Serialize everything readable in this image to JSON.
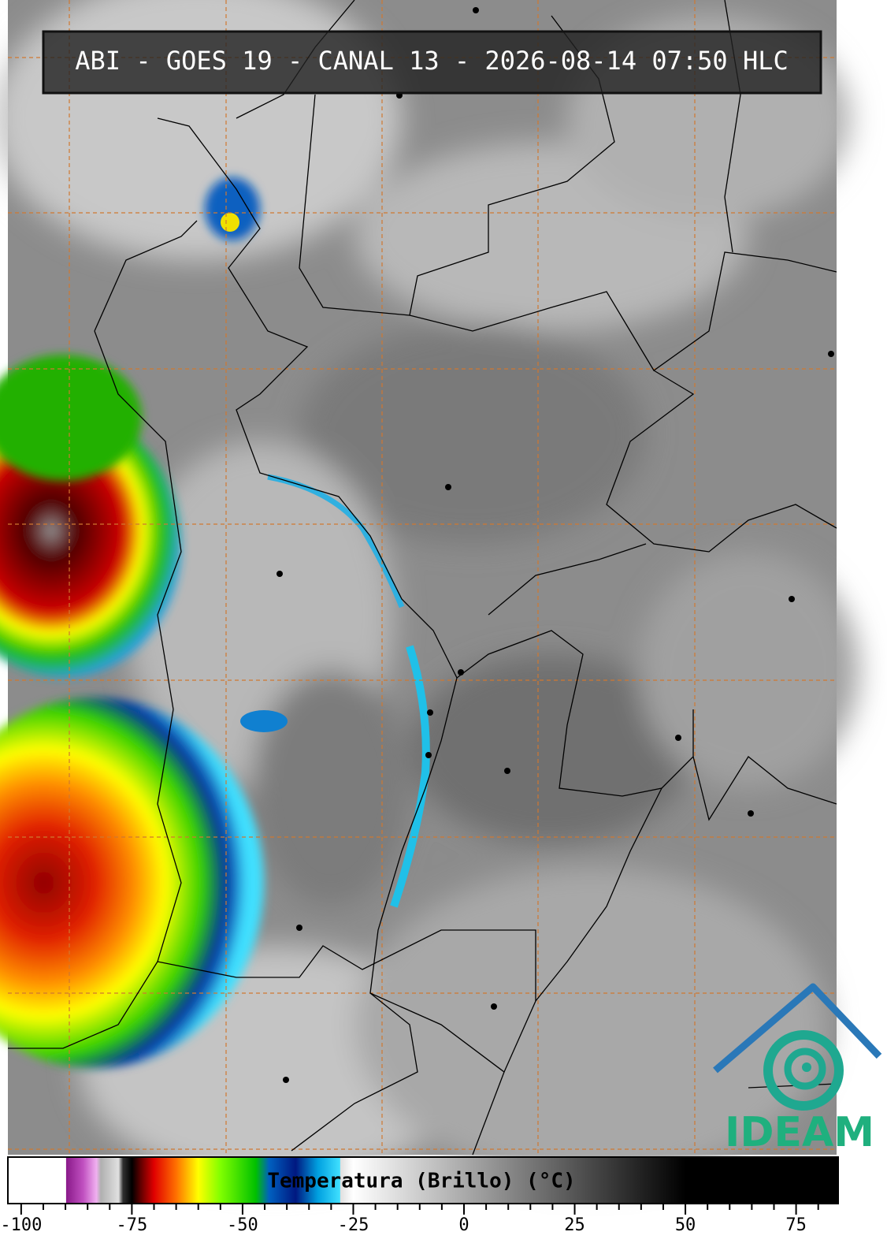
{
  "title": "ABI - GOES 19 - CANAL 13 - 2026-08-14 07:50 HLC",
  "logo": "IDEAM",
  "colorbar": {
    "label": "Temperatura (Brillo) (°C)",
    "lim": [
      -103,
      84.5
    ],
    "ticks": [
      -100,
      -75,
      -50,
      -25,
      0,
      25,
      50,
      75
    ],
    "minor_ticks": [
      -95,
      -90,
      -85,
      -80,
      -70,
      -65,
      -60,
      -55,
      -45,
      -40,
      -35,
      -30,
      -20,
      -15,
      -10,
      -5,
      5,
      10,
      15,
      20,
      30,
      35,
      40,
      45,
      55,
      60,
      65,
      70,
      80
    ],
    "color_stops": [
      {
        "value": -103,
        "color": "#ffffff"
      },
      {
        "value": -89.9,
        "color": "#ffffff"
      },
      {
        "value": -89.8,
        "color": "#8a1a8a"
      },
      {
        "value": -86,
        "color": "#c050c0"
      },
      {
        "value": -83,
        "color": "#f0b0f0"
      },
      {
        "value": -82,
        "color": "#b0b0b0"
      },
      {
        "value": -78,
        "color": "#e0e0e0"
      },
      {
        "value": -77,
        "color": "#303030"
      },
      {
        "value": -75,
        "color": "#000000"
      },
      {
        "value": -73,
        "color": "#600000"
      },
      {
        "value": -70,
        "color": "#e00000"
      },
      {
        "value": -65,
        "color": "#ff7000"
      },
      {
        "value": -60,
        "color": "#ffff00"
      },
      {
        "value": -55,
        "color": "#80ff00"
      },
      {
        "value": -47,
        "color": "#00c000"
      },
      {
        "value": -44,
        "color": "#0060c0"
      },
      {
        "value": -38,
        "color": "#001880"
      },
      {
        "value": -33,
        "color": "#00a0e0"
      },
      {
        "value": -28,
        "color": "#40e0ff"
      },
      {
        "value": -27.9,
        "color": "#e0e0e0"
      },
      {
        "value": -25,
        "color": "#ffffff"
      },
      {
        "value": 50,
        "color": "#000000"
      },
      {
        "value": 84.5,
        "color": "#000000"
      }
    ]
  }
}
